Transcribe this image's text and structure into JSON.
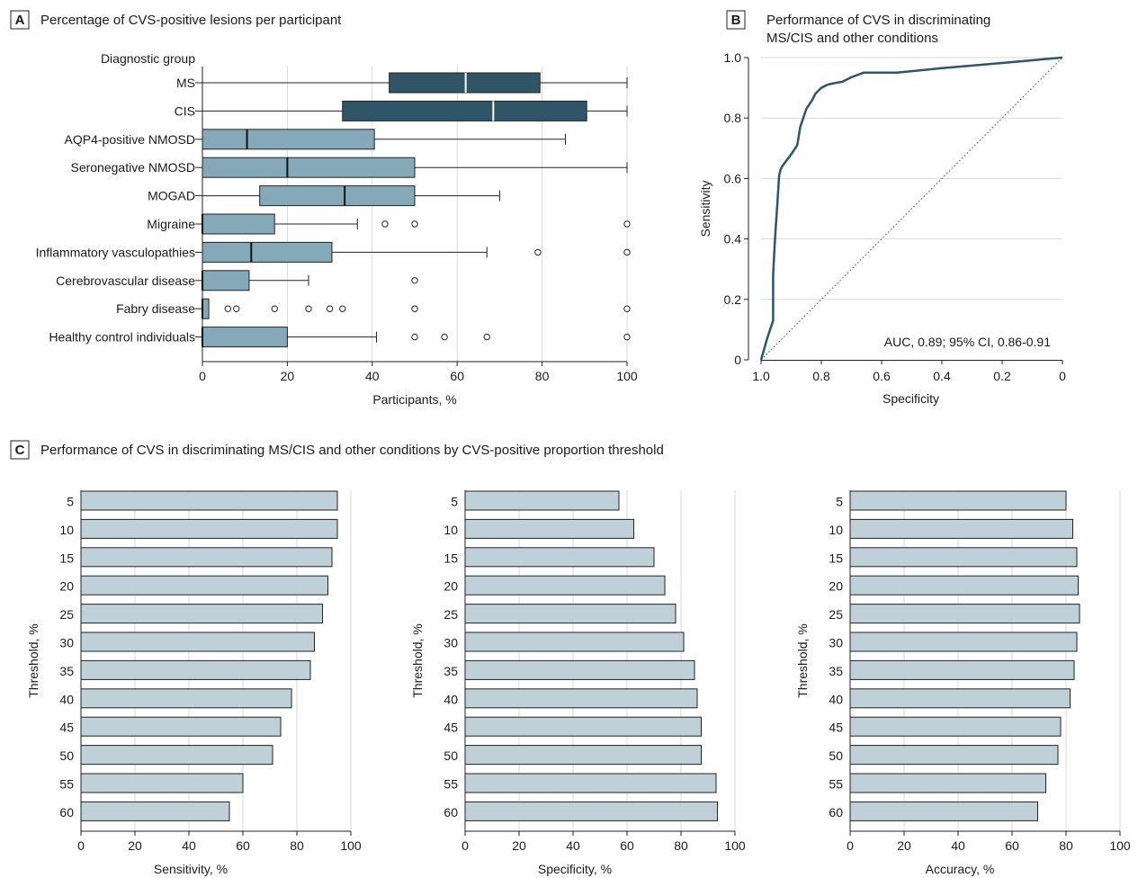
{
  "panels": {
    "A": {
      "letter": "A",
      "title": "Percentage of CVS-positive lesions per participant"
    },
    "B": {
      "letter": "B",
      "title_line1": "Performance of CVS in discriminating",
      "title_line2": "MS/CIS and other conditions"
    },
    "C": {
      "letter": "C",
      "title": "Performance of CVS in discriminating MS/CIS and other conditions by CVS-positive proportion threshold"
    }
  },
  "colors": {
    "dark_box": "#2f5566",
    "light_box": "#85a9b8",
    "bar_fill": "#bfd0d8",
    "roc_line": "#2f5566"
  },
  "chart_data": [
    {
      "type": "box",
      "panel": "A",
      "group_header": "Diagnostic group",
      "xlabel": "Participants, %",
      "xlim": [
        0,
        100
      ],
      "xticks": [
        0,
        20,
        40,
        60,
        80,
        100
      ],
      "groups": [
        {
          "name": "MS",
          "min": 0,
          "q1": 44,
          "median": 62,
          "q3": 79.5,
          "max": 100,
          "outliers": [],
          "style": "dark"
        },
        {
          "name": "CIS",
          "min": 0,
          "q1": 33,
          "median": 68.5,
          "q3": 90.5,
          "max": 100,
          "outliers": [],
          "style": "dark"
        },
        {
          "name": "AQP4-positive NMOSD",
          "min": 0,
          "q1": 0,
          "median": 10.5,
          "q3": 40.5,
          "max": 85.5,
          "outliers": [],
          "style": "light"
        },
        {
          "name": "Seronegative NMOSD",
          "min": 0,
          "q1": 0,
          "median": 20,
          "q3": 50,
          "max": 100,
          "outliers": [],
          "style": "light"
        },
        {
          "name": "MOGAD",
          "min": 0,
          "q1": 13.5,
          "median": 33.5,
          "q3": 50,
          "max": 70,
          "outliers": [],
          "style": "light"
        },
        {
          "name": "Migraine",
          "min": 0,
          "q1": 0,
          "median": 0,
          "q3": 17,
          "max": 36.5,
          "outliers": [
            43,
            50,
            100
          ],
          "style": "light"
        },
        {
          "name": "Inflammatory vasculopathies",
          "min": 0,
          "q1": 0,
          "median": 11.5,
          "q3": 30.5,
          "max": 67,
          "outliers": [
            79,
            100
          ],
          "style": "light"
        },
        {
          "name": "Cerebrovascular disease",
          "min": 0,
          "q1": 0,
          "median": 0,
          "q3": 11,
          "max": 25,
          "outliers": [
            50
          ],
          "style": "light"
        },
        {
          "name": "Fabry disease",
          "min": 0,
          "q1": 0,
          "median": 0,
          "q3": 1.5,
          "max": 1.5,
          "outliers": [
            6,
            8,
            17,
            25,
            30,
            33,
            50,
            100
          ],
          "style": "light"
        },
        {
          "name": "Healthy control individuals",
          "min": 0,
          "q1": 0,
          "median": 0,
          "q3": 20,
          "max": 41,
          "outliers": [
            50,
            57,
            67,
            100
          ],
          "style": "light"
        }
      ]
    },
    {
      "type": "line",
      "panel": "B",
      "xlabel": "Specificity",
      "ylabel": "Sensitivity",
      "xlim": [
        1.0,
        0
      ],
      "ylim": [
        0,
        1.0
      ],
      "xticks": [
        1.0,
        0.8,
        0.6,
        0.4,
        0.2,
        0
      ],
      "xtick_labels": [
        "1.0",
        "0.8",
        "0.6",
        "0.4",
        "0.2",
        "0"
      ],
      "yticks": [
        0,
        0.2,
        0.4,
        0.6,
        0.8,
        1.0
      ],
      "ytick_labels": [
        "0",
        "0.2",
        "0.4",
        "0.6",
        "0.8",
        "1.0"
      ],
      "annotation": "AUC, 0.89; 95% CI, 0.86-0.91",
      "reference_line": "diagonal dotted",
      "roc": {
        "specificity": [
          1.0,
          0.98,
          0.96,
          0.96,
          0.955,
          0.95,
          0.945,
          0.94,
          0.935,
          0.93,
          0.9,
          0.88,
          0.875,
          0.87,
          0.86,
          0.85,
          0.84,
          0.83,
          0.82,
          0.8,
          0.78,
          0.76,
          0.73,
          0.7,
          0.66,
          0.6,
          0.55,
          0.5,
          0.4,
          0.2,
          0
        ],
        "sensitivity": [
          0.0,
          0.07,
          0.13,
          0.28,
          0.38,
          0.46,
          0.53,
          0.61,
          0.63,
          0.64,
          0.68,
          0.71,
          0.74,
          0.77,
          0.8,
          0.83,
          0.845,
          0.86,
          0.88,
          0.9,
          0.91,
          0.915,
          0.92,
          0.935,
          0.95,
          0.95,
          0.95,
          0.955,
          0.965,
          0.982,
          1.0
        ]
      }
    },
    {
      "type": "bar",
      "panel": "C",
      "orientation": "horizontal",
      "ylabel": "Threshold, %",
      "xlim": [
        0,
        100
      ],
      "xticks": [
        0,
        20,
        40,
        60,
        80,
        100
      ],
      "categories": [
        "5",
        "10",
        "15",
        "20",
        "25",
        "30",
        "35",
        "40",
        "45",
        "50",
        "55",
        "60"
      ],
      "panels": [
        {
          "xlabel": "Sensitivity, %",
          "values": [
            95,
            95,
            93,
            91.5,
            89.5,
            86.5,
            85,
            78,
            74,
            71,
            60,
            55
          ]
        },
        {
          "xlabel": "Specificity, %",
          "values": [
            57,
            62.5,
            70,
            74,
            78,
            81,
            85,
            86,
            87.5,
            87.5,
            93,
            93.5
          ]
        },
        {
          "xlabel": "Accuracy, %",
          "values": [
            80,
            82.5,
            84,
            84.5,
            85,
            84,
            83,
            81.5,
            78,
            77,
            72.5,
            69.5
          ]
        }
      ]
    }
  ]
}
